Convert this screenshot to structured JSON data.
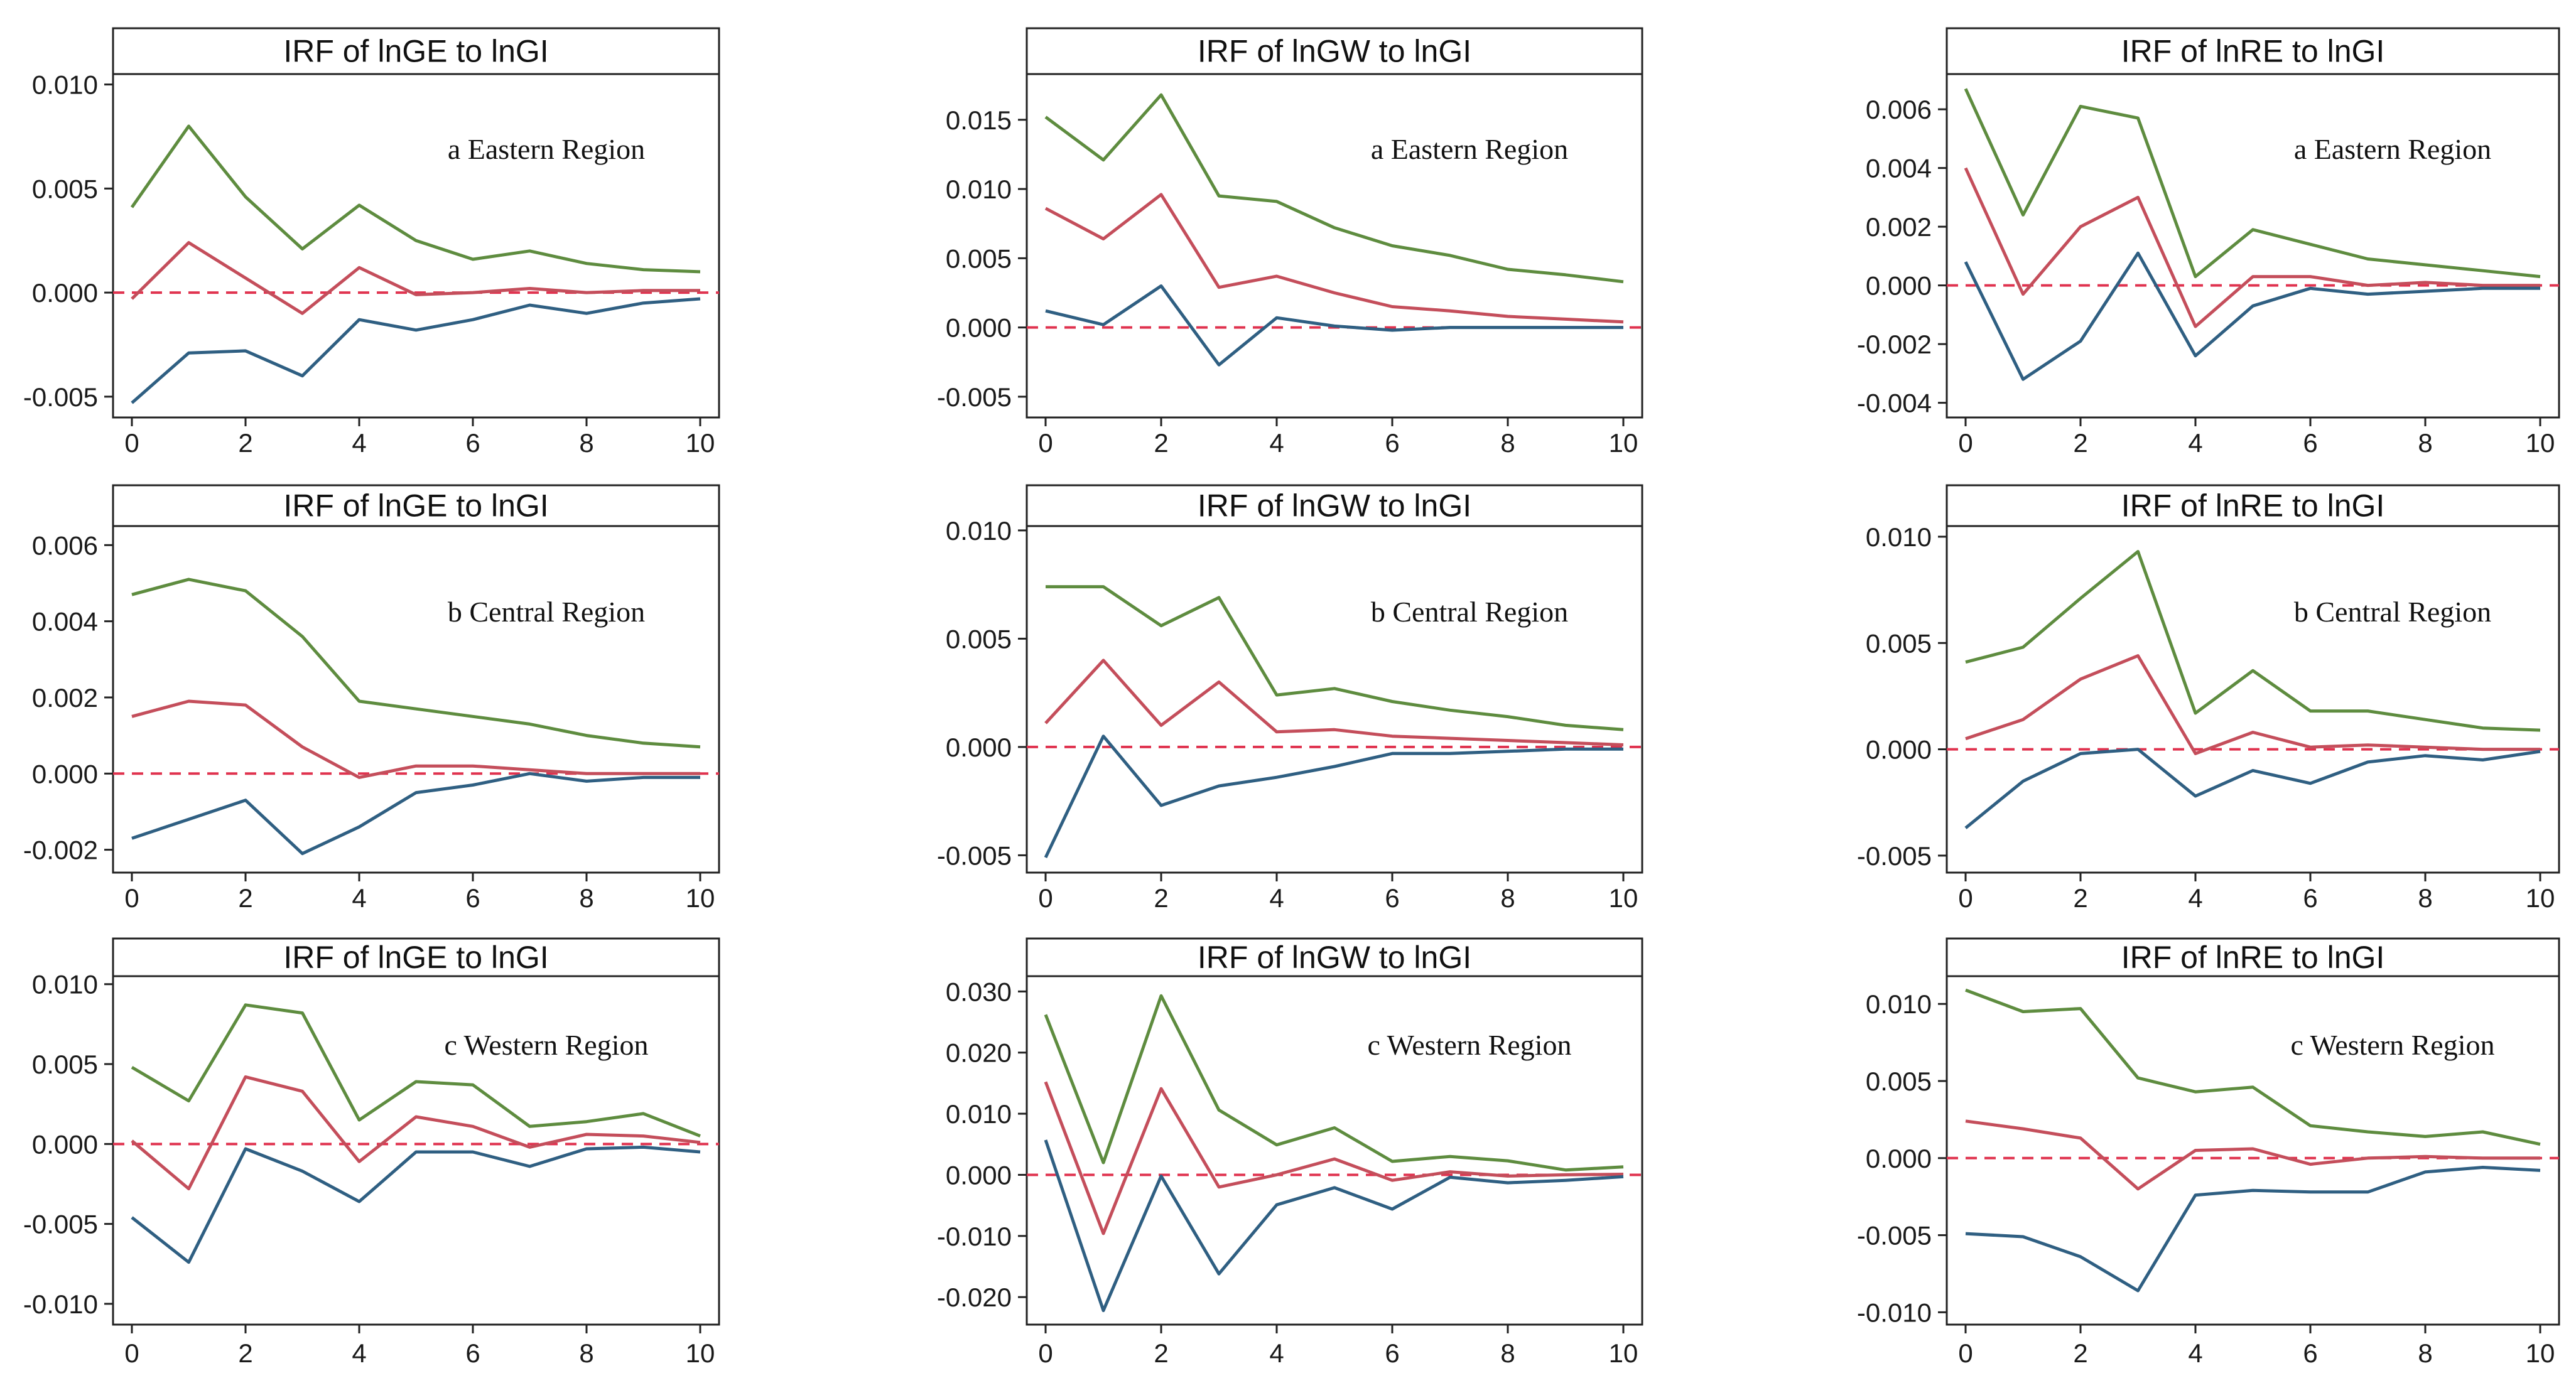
{
  "figure": {
    "colors": {
      "upper": "#5e8c3f",
      "irf": "#c44e5b",
      "lower": "#2f5f82",
      "zero_line": "#e0334f",
      "axis": "#222222"
    }
  },
  "chart_data": [
    {
      "type": "line",
      "title": "IRF of lnGE to lnGI",
      "annotation": "a Eastern Region",
      "xlabel": "",
      "ylabel": "",
      "xlim": [
        0,
        10
      ],
      "ylim": [
        -0.006,
        0.0105
      ],
      "x": [
        0,
        1,
        2,
        3,
        4,
        5,
        6,
        7,
        8,
        9,
        10
      ],
      "x_ticks": [
        0,
        2,
        4,
        6,
        8,
        10
      ],
      "x_tick_labels": [
        "0",
        "2",
        "4",
        "6",
        "8",
        "10"
      ],
      "y_ticks": [
        -0.005,
        0,
        0.005,
        0.01
      ],
      "y_tick_labels": [
        "-0.005",
        "0.000",
        "0.005",
        "0.010"
      ],
      "series": [
        {
          "name": "upper",
          "color_key": "upper",
          "values": [
            0.0041,
            0.008,
            0.0046,
            0.0021,
            0.0042,
            0.0025,
            0.0016,
            0.002,
            0.0014,
            0.0011,
            0.001
          ]
        },
        {
          "name": "irf",
          "color_key": "irf",
          "values": [
            -0.0003,
            0.0024,
            0.0007,
            -0.001,
            0.0012,
            -0.0001,
            0.0,
            0.0002,
            0.0,
            0.0001,
            0.0001
          ]
        },
        {
          "name": "lower",
          "color_key": "lower",
          "values": [
            -0.0053,
            -0.0029,
            -0.0028,
            -0.004,
            -0.0013,
            -0.0018,
            -0.0013,
            -0.0006,
            -0.001,
            -0.0005,
            -0.0003
          ]
        }
      ]
    },
    {
      "type": "line",
      "title": "IRF of lnGW to lnGI",
      "annotation": "a Eastern Region",
      "xlabel": "",
      "ylabel": "",
      "xlim": [
        0,
        10
      ],
      "ylim": [
        -0.0065,
        0.0183
      ],
      "x": [
        0,
        1,
        2,
        3,
        4,
        5,
        6,
        7,
        8,
        9,
        10
      ],
      "x_ticks": [
        0,
        2,
        4,
        6,
        8,
        10
      ],
      "x_tick_labels": [
        "0",
        "2",
        "4",
        "6",
        "8",
        "10"
      ],
      "y_ticks": [
        -0.005,
        0,
        0.005,
        0.01,
        0.015
      ],
      "y_tick_labels": [
        "-0.005",
        "0.000",
        "0.005",
        "0.010",
        "0.015"
      ],
      "series": [
        {
          "name": "upper",
          "color_key": "upper",
          "values": [
            0.0152,
            0.0121,
            0.0168,
            0.0095,
            0.0091,
            0.0072,
            0.0059,
            0.0052,
            0.0042,
            0.0038,
            0.0033
          ]
        },
        {
          "name": "irf",
          "color_key": "irf",
          "values": [
            0.0086,
            0.0064,
            0.0096,
            0.0029,
            0.0037,
            0.0025,
            0.0015,
            0.0012,
            0.0008,
            0.0006,
            0.0004
          ]
        },
        {
          "name": "lower",
          "color_key": "lower",
          "values": [
            0.0012,
            0.0002,
            0.003,
            -0.0027,
            0.0007,
            0.0001,
            -0.0002,
            0.0,
            0.0,
            0.0,
            0.0
          ]
        }
      ]
    },
    {
      "type": "line",
      "title": "IRF of lnRE to lnGI",
      "annotation": "a Eastern Region",
      "xlabel": "",
      "ylabel": "",
      "xlim": [
        0,
        10
      ],
      "ylim": [
        -0.0045,
        0.0072
      ],
      "x": [
        0,
        1,
        2,
        3,
        4,
        5,
        6,
        7,
        8,
        9,
        10
      ],
      "x_ticks": [
        0,
        2,
        4,
        6,
        8,
        10
      ],
      "x_tick_labels": [
        "0",
        "2",
        "4",
        "6",
        "8",
        "10"
      ],
      "y_ticks": [
        -0.004,
        -0.002,
        0,
        0.002,
        0.004,
        0.006
      ],
      "y_tick_labels": [
        "-0.004",
        "-0.002",
        "0.000",
        "0.002",
        "0.004",
        "0.006"
      ],
      "series": [
        {
          "name": "upper",
          "color_key": "upper",
          "values": [
            0.0067,
            0.0024,
            0.0061,
            0.0057,
            0.0003,
            0.0019,
            0.0014,
            0.0009,
            0.0007,
            0.0005,
            0.0003
          ]
        },
        {
          "name": "irf",
          "color_key": "irf",
          "values": [
            0.004,
            -0.0003,
            0.002,
            0.003,
            -0.0014,
            0.0003,
            0.0003,
            0.0,
            0.0001,
            0.0,
            0.0
          ]
        },
        {
          "name": "lower",
          "color_key": "lower",
          "values": [
            0.0008,
            -0.0032,
            -0.0019,
            0.0011,
            -0.0024,
            -0.0007,
            -0.0001,
            -0.0003,
            -0.0002,
            -0.0001,
            -0.0001
          ]
        }
      ]
    },
    {
      "type": "line",
      "title": "IRF of lnGE to lnGI",
      "annotation": "b Central Region",
      "xlabel": "",
      "ylabel": "",
      "xlim": [
        0,
        10
      ],
      "ylim": [
        -0.0026,
        0.0065
      ],
      "x": [
        0,
        1,
        2,
        3,
        4,
        5,
        6,
        7,
        8,
        9,
        10
      ],
      "x_ticks": [
        0,
        2,
        4,
        6,
        8,
        10
      ],
      "x_tick_labels": [
        "0",
        "2",
        "4",
        "6",
        "8",
        "10"
      ],
      "y_ticks": [
        -0.002,
        0,
        0.002,
        0.004,
        0.006
      ],
      "y_tick_labels": [
        "-0.002",
        "0.000",
        "0.002",
        "0.004",
        "0.006"
      ],
      "series": [
        {
          "name": "upper",
          "color_key": "upper",
          "values": [
            0.0047,
            0.0051,
            0.0048,
            0.0036,
            0.0019,
            0.0017,
            0.0015,
            0.0013,
            0.001,
            0.0008,
            0.0007
          ]
        },
        {
          "name": "irf",
          "color_key": "irf",
          "values": [
            0.0015,
            0.0019,
            0.0018,
            0.0007,
            -0.0001,
            0.0002,
            0.0002,
            0.0001,
            0.0,
            0.0,
            0.0
          ]
        },
        {
          "name": "lower",
          "color_key": "lower",
          "values": [
            -0.0017,
            -0.0012,
            -0.0007,
            -0.0021,
            -0.0014,
            -0.0005,
            -0.0003,
            0.0,
            -0.0002,
            -0.0001,
            -0.0001
          ]
        }
      ]
    },
    {
      "type": "line",
      "title": "IRF of lnGW to lnGI",
      "annotation": "b Central Region",
      "xlabel": "",
      "ylabel": "",
      "xlim": [
        0,
        10
      ],
      "ylim": [
        -0.0058,
        0.0102
      ],
      "x": [
        0,
        1,
        2,
        3,
        4,
        5,
        6,
        7,
        8,
        9,
        10
      ],
      "x_ticks": [
        0,
        2,
        4,
        6,
        8,
        10
      ],
      "x_tick_labels": [
        "0",
        "2",
        "4",
        "6",
        "8",
        "10"
      ],
      "y_ticks": [
        -0.005,
        0,
        0.005,
        0.01
      ],
      "y_tick_labels": [
        "-0.005",
        "0.000",
        "0.005",
        "0.010"
      ],
      "series": [
        {
          "name": "upper",
          "color_key": "upper",
          "values": [
            0.0074,
            0.0074,
            0.0056,
            0.0069,
            0.0024,
            0.0027,
            0.0021,
            0.0017,
            0.0014,
            0.001,
            0.0008
          ]
        },
        {
          "name": "irf",
          "color_key": "irf",
          "values": [
            0.0011,
            0.004,
            0.001,
            0.003,
            0.0007,
            0.0008,
            0.0005,
            0.0004,
            0.0003,
            0.0002,
            0.0001
          ]
        },
        {
          "name": "lower",
          "color_key": "lower",
          "values": [
            -0.0051,
            0.0005,
            -0.0027,
            -0.0018,
            -0.0014,
            -0.0009,
            -0.0003,
            -0.0003,
            -0.0002,
            -0.0001,
            -0.0001
          ]
        }
      ]
    },
    {
      "type": "line",
      "title": "IRF of lnRE to lnGI",
      "annotation": "b Central Region",
      "xlabel": "",
      "ylabel": "",
      "xlim": [
        0,
        10
      ],
      "ylim": [
        -0.0058,
        0.0105
      ],
      "x": [
        0,
        1,
        2,
        3,
        4,
        5,
        6,
        7,
        8,
        9,
        10
      ],
      "x_ticks": [
        0,
        2,
        4,
        6,
        8,
        10
      ],
      "x_tick_labels": [
        "0",
        "2",
        "4",
        "6",
        "8",
        "10"
      ],
      "y_ticks": [
        -0.005,
        0,
        0.005,
        0.01
      ],
      "y_tick_labels": [
        "-0.005",
        "0.000",
        "0.005",
        "0.010"
      ],
      "series": [
        {
          "name": "upper",
          "color_key": "upper",
          "values": [
            0.0041,
            0.0048,
            0.0071,
            0.0093,
            0.0017,
            0.0037,
            0.0018,
            0.0018,
            0.0014,
            0.001,
            0.0009
          ]
        },
        {
          "name": "irf",
          "color_key": "irf",
          "values": [
            0.0005,
            0.0014,
            0.0033,
            0.0044,
            -0.0002,
            0.0008,
            0.0001,
            0.0002,
            0.0001,
            0.0,
            0.0
          ]
        },
        {
          "name": "lower",
          "color_key": "lower",
          "values": [
            -0.0037,
            -0.0015,
            -0.0002,
            0.0,
            -0.0022,
            -0.001,
            -0.0016,
            -0.0006,
            -0.0003,
            -0.0005,
            -0.0001
          ]
        }
      ]
    },
    {
      "type": "line",
      "title": "IRF of lnGE to lnGI",
      "annotation": "c Western Region",
      "xlabel": "",
      "ylabel": "",
      "xlim": [
        0,
        10
      ],
      "ylim": [
        -0.0113,
        0.0105
      ],
      "x": [
        0,
        1,
        2,
        3,
        4,
        5,
        6,
        7,
        8,
        9,
        10
      ],
      "x_ticks": [
        0,
        2,
        4,
        6,
        8,
        10
      ],
      "x_tick_labels": [
        "0",
        "2",
        "4",
        "6",
        "8",
        "10"
      ],
      "y_ticks": [
        -0.01,
        -0.005,
        0,
        0.005,
        0.01
      ],
      "y_tick_labels": [
        "-0.010",
        "-0.005",
        "0.000",
        "0.005",
        "0.010"
      ],
      "series": [
        {
          "name": "upper",
          "color_key": "upper",
          "values": [
            0.0048,
            0.0027,
            0.0087,
            0.0082,
            0.0015,
            0.0039,
            0.0037,
            0.0011,
            0.0014,
            0.0019,
            0.0005
          ]
        },
        {
          "name": "irf",
          "color_key": "irf",
          "values": [
            0.0002,
            -0.0028,
            0.0042,
            0.0033,
            -0.0011,
            0.0017,
            0.0011,
            -0.0002,
            0.0006,
            0.0005,
            0.0001
          ]
        },
        {
          "name": "lower",
          "color_key": "lower",
          "values": [
            -0.0046,
            -0.0074,
            -0.0003,
            -0.0017,
            -0.0036,
            -0.0005,
            -0.0005,
            -0.0014,
            -0.0003,
            -0.0002,
            -0.0005
          ]
        }
      ]
    },
    {
      "type": "line",
      "title": "IRF of lnGW to lnGI",
      "annotation": "c Western Region",
      "xlabel": "",
      "ylabel": "",
      "xlim": [
        0,
        10
      ],
      "ylim": [
        -0.0245,
        0.0325
      ],
      "x": [
        0,
        1,
        2,
        3,
        4,
        5,
        6,
        7,
        8,
        9,
        10
      ],
      "x_ticks": [
        0,
        2,
        4,
        6,
        8,
        10
      ],
      "x_tick_labels": [
        "0",
        "2",
        "4",
        "6",
        "8",
        "10"
      ],
      "y_ticks": [
        -0.02,
        -0.01,
        0,
        0.01,
        0.02,
        0.03
      ],
      "y_tick_labels": [
        "-0.020",
        "-0.010",
        "0.000",
        "0.010",
        "0.020",
        "0.030"
      ],
      "series": [
        {
          "name": "upper",
          "color_key": "upper",
          "values": [
            0.0262,
            0.002,
            0.0293,
            0.0106,
            0.0049,
            0.0077,
            0.0022,
            0.003,
            0.0023,
            0.0008,
            0.0013
          ]
        },
        {
          "name": "irf",
          "color_key": "irf",
          "values": [
            0.0152,
            -0.0096,
            0.0141,
            -0.002,
            0.0,
            0.0026,
            -0.0009,
            0.0005,
            -0.0002,
            0.0,
            0.0001
          ]
        },
        {
          "name": "lower",
          "color_key": "lower",
          "values": [
            0.0057,
            -0.0222,
            -0.0002,
            -0.0162,
            -0.0049,
            -0.0021,
            -0.0056,
            -0.0004,
            -0.0013,
            -0.0009,
            -0.0003
          ]
        }
      ]
    },
    {
      "type": "line",
      "title": "IRF of lnRE to lnGI",
      "annotation": "c Western Region",
      "xlabel": "",
      "ylabel": "",
      "xlim": [
        0,
        10
      ],
      "ylim": [
        -0.0108,
        0.0118
      ],
      "x": [
        0,
        1,
        2,
        3,
        4,
        5,
        6,
        7,
        8,
        9,
        10
      ],
      "x_ticks": [
        0,
        2,
        4,
        6,
        8,
        10
      ],
      "x_tick_labels": [
        "0",
        "2",
        "4",
        "6",
        "8",
        "10"
      ],
      "y_ticks": [
        -0.01,
        -0.005,
        0,
        0.005,
        0.01
      ],
      "y_tick_labels": [
        "-0.010",
        "-0.005",
        "0.000",
        "0.005",
        "0.010"
      ],
      "series": [
        {
          "name": "upper",
          "color_key": "upper",
          "values": [
            0.0109,
            0.0095,
            0.0097,
            0.0052,
            0.0043,
            0.0046,
            0.0021,
            0.0017,
            0.0014,
            0.0017,
            0.0009
          ]
        },
        {
          "name": "irf",
          "color_key": "irf",
          "values": [
            0.0024,
            0.0019,
            0.0013,
            -0.002,
            0.0005,
            0.0006,
            -0.0004,
            0.0,
            0.0001,
            0.0,
            0.0
          ]
        },
        {
          "name": "lower",
          "color_key": "lower",
          "values": [
            -0.0049,
            -0.0051,
            -0.0064,
            -0.0086,
            -0.0024,
            -0.0021,
            -0.0022,
            -0.0022,
            -0.0009,
            -0.0006,
            -0.0008
          ]
        }
      ]
    }
  ]
}
